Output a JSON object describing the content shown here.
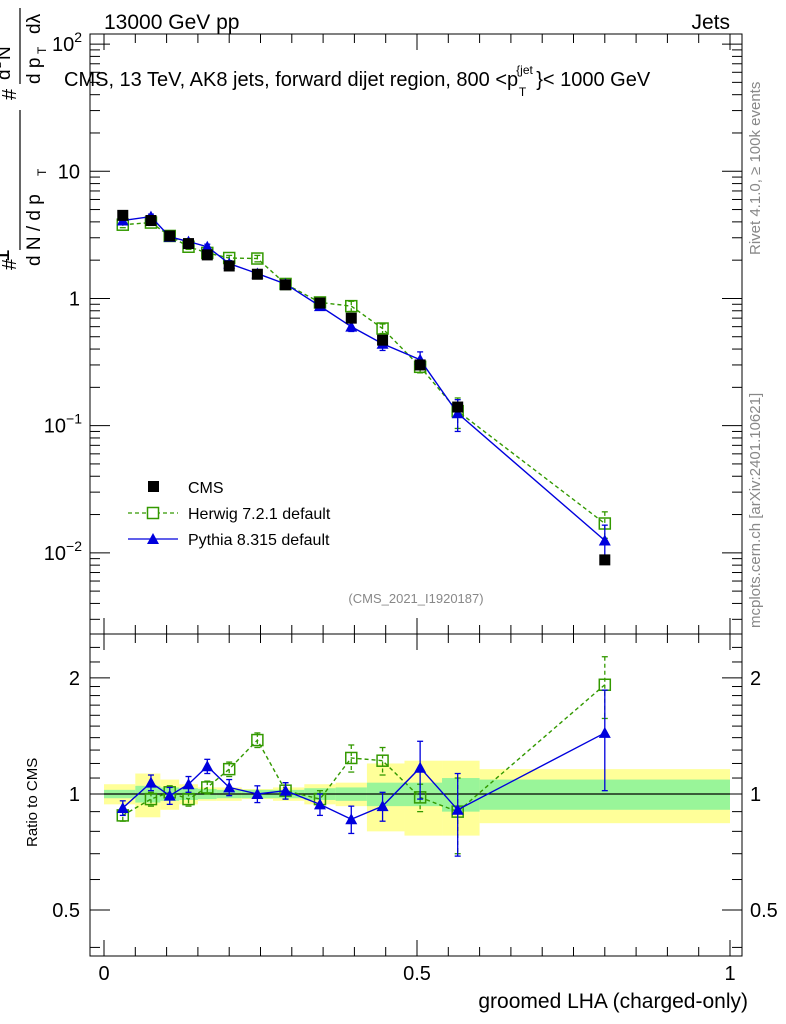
{
  "header": {
    "left": "13000 GeV pp",
    "right": "Jets"
  },
  "side": {
    "rivet": "Rivet 4.1.0, ≥ 100k events",
    "mcplots": "mcplots.cern.ch [arXiv:2401.10621]"
  },
  "chart_data": [
    {
      "type": "line",
      "panel": "main",
      "title": "CMS, 13 TeV, AK8 jets, forward dijet region, 800 <p_T^{jet}< 1000 GeV",
      "ylabel": "1/(dN/dp_T) d²N/(dp_T dλ)",
      "yscale": "log",
      "ylim": [
        0.0023,
        120
      ],
      "xlim": [
        -0.02,
        1.0
      ],
      "analysis_tag": "(CMS_2021_I1920187)",
      "y_ticks": [
        {
          "value": 0.01,
          "base": "10",
          "exp": "−2"
        },
        {
          "value": 0.1,
          "base": "10",
          "exp": "−1"
        },
        {
          "value": 1,
          "base": "1",
          "exp": ""
        },
        {
          "value": 10,
          "base": "10",
          "exp": ""
        },
        {
          "value": 100,
          "base": "10",
          "exp": "2"
        }
      ],
      "legend": [
        "CMS",
        "Herwig 7.2.1 default",
        "Pythia 8.315 default"
      ],
      "x": [
        0.03,
        0.075,
        0.105,
        0.135,
        0.165,
        0.2,
        0.245,
        0.29,
        0.345,
        0.395,
        0.445,
        0.505,
        0.565,
        0.8
      ],
      "series": [
        {
          "name": "CMS",
          "color": "#000000",
          "marker": "square-filled",
          "values": [
            4.5,
            4.1,
            3.1,
            2.7,
            2.2,
            1.8,
            1.55,
            1.28,
            0.92,
            0.7,
            0.47,
            0.3,
            0.14,
            0.0088
          ]
        },
        {
          "name": "Herwig 7.2.1 default",
          "color": "#339900",
          "marker": "square-open",
          "dashed": true,
          "values": [
            3.8,
            3.95,
            3.1,
            2.55,
            2.28,
            2.08,
            2.06,
            1.3,
            0.93,
            0.87,
            0.58,
            0.29,
            0.13,
            0.017
          ],
          "err": [
            0.2,
            0.2,
            0.15,
            0.12,
            0.1,
            0.1,
            0.12,
            0.06,
            0.05,
            0.08,
            0.05,
            0.03,
            0.035,
            0.004
          ]
        },
        {
          "name": "Pythia 8.315 default",
          "color": "#0000dd",
          "marker": "triangle-filled",
          "values": [
            4.1,
            4.4,
            3.05,
            2.8,
            2.55,
            1.88,
            1.57,
            1.3,
            0.87,
            0.6,
            0.44,
            0.33,
            0.125,
            0.0125
          ],
          "err": [
            0.2,
            0.2,
            0.15,
            0.13,
            0.12,
            0.1,
            0.1,
            0.06,
            0.05,
            0.05,
            0.05,
            0.05,
            0.035,
            0.004
          ]
        }
      ]
    },
    {
      "type": "line",
      "panel": "ratio",
      "ylabel": "Ratio to CMS",
      "xlabel": "groomed LHA (charged-only)",
      "yscale": "log",
      "ylim": [
        0.38,
        2.6
      ],
      "xlim": [
        -0.02,
        1.0
      ],
      "y_ticks": [
        0.5,
        1,
        2
      ],
      "y_tick_labels": [
        "0.5",
        "1",
        "2"
      ],
      "x_ticks": [
        0,
        0.5,
        1
      ],
      "x_tick_labels": [
        "0",
        "0.5",
        "1"
      ],
      "bins": [
        {
          "lo": 0.0,
          "hi": 0.05,
          "stat": 0.025,
          "tot": 0.06
        },
        {
          "lo": 0.05,
          "hi": 0.09,
          "stat": 0.05,
          "tot": 0.13
        },
        {
          "lo": 0.09,
          "hi": 0.12,
          "stat": 0.04,
          "tot": 0.09
        },
        {
          "lo": 0.12,
          "hi": 0.15,
          "stat": 0.035,
          "tot": 0.06
        },
        {
          "lo": 0.15,
          "hi": 0.18,
          "stat": 0.03,
          "tot": 0.04
        },
        {
          "lo": 0.18,
          "hi": 0.22,
          "stat": 0.025,
          "tot": 0.04
        },
        {
          "lo": 0.22,
          "hi": 0.27,
          "stat": 0.025,
          "tot": 0.03
        },
        {
          "lo": 0.27,
          "hi": 0.32,
          "stat": 0.025,
          "tot": 0.04
        },
        {
          "lo": 0.32,
          "hi": 0.37,
          "stat": 0.035,
          "tot": 0.06
        },
        {
          "lo": 0.37,
          "hi": 0.42,
          "stat": 0.04,
          "tot": 0.07
        },
        {
          "lo": 0.42,
          "hi": 0.48,
          "stat": 0.07,
          "tot": 0.2
        },
        {
          "lo": 0.48,
          "hi": 0.54,
          "stat": 0.07,
          "tot": 0.22
        },
        {
          "lo": 0.54,
          "hi": 0.6,
          "stat": 0.1,
          "tot": 0.22
        },
        {
          "lo": 0.6,
          "hi": 1.0,
          "stat": 0.09,
          "tot": 0.16
        }
      ],
      "series": [
        {
          "name": "Herwig 7.2.1 default",
          "color": "#339900",
          "marker": "square-open",
          "dashed": true,
          "values": [
            0.88,
            0.97,
            1.01,
            0.97,
            1.04,
            1.16,
            1.38,
            1.02,
            0.97,
            1.24,
            1.22,
            0.98,
            0.9,
            1.92
          ],
          "err": [
            0.03,
            0.04,
            0.04,
            0.04,
            0.04,
            0.05,
            0.06,
            0.05,
            0.05,
            0.1,
            0.1,
            0.08,
            0.2,
            0.35
          ]
        },
        {
          "name": "Pythia 8.315 default",
          "color": "#0000dd",
          "marker": "triangle-filled",
          "values": [
            0.92,
            1.07,
            0.99,
            1.06,
            1.18,
            1.04,
            1.0,
            1.02,
            0.94,
            0.86,
            0.93,
            1.17,
            0.91,
            1.44
          ],
          "err": [
            0.04,
            0.05,
            0.05,
            0.05,
            0.05,
            0.05,
            0.05,
            0.05,
            0.06,
            0.07,
            0.08,
            0.2,
            0.22,
            0.42
          ]
        }
      ]
    }
  ]
}
